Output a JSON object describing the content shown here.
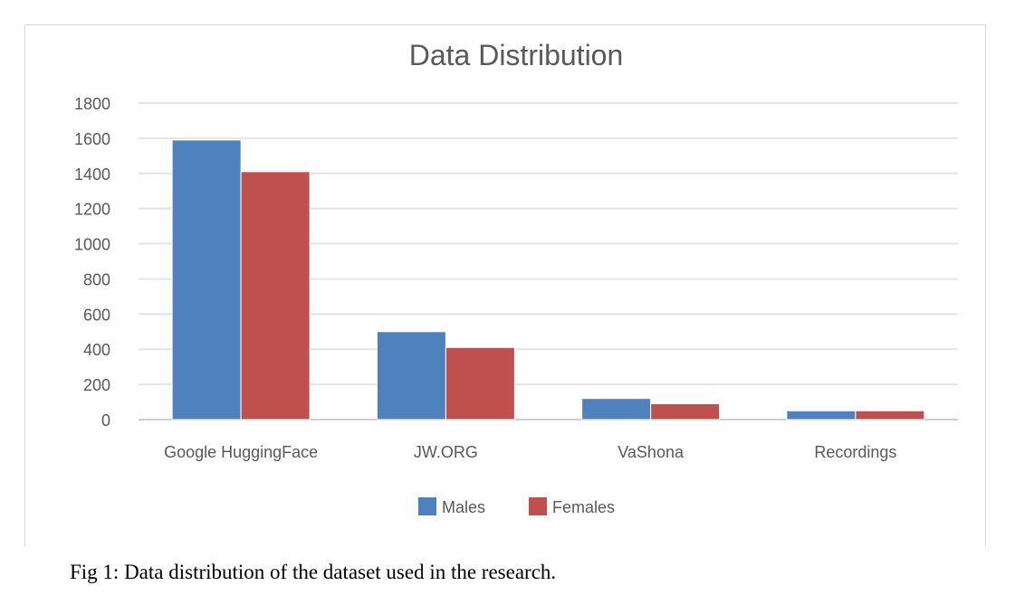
{
  "caption": "Fig 1: Data distribution of the dataset used in the research.",
  "chart_data": {
    "type": "bar",
    "title": "Data Distribution",
    "xlabel": "",
    "ylabel": "",
    "categories": [
      "Google HuggingFace",
      "JW.ORG",
      "VaShona",
      "Recordings"
    ],
    "series": [
      {
        "name": "Males",
        "color": "#4f81bd",
        "values": [
          1590,
          500,
          120,
          50
        ]
      },
      {
        "name": "Females",
        "color": "#c0504d",
        "values": [
          1410,
          410,
          90,
          50
        ]
      }
    ],
    "ylim": [
      0,
      1800
    ],
    "yticks": [
      "0",
      "200",
      "400",
      "600",
      "800",
      "1000",
      "1200",
      "1400",
      "1600",
      "1800"
    ],
    "grid": true,
    "legend_position": "bottom"
  }
}
